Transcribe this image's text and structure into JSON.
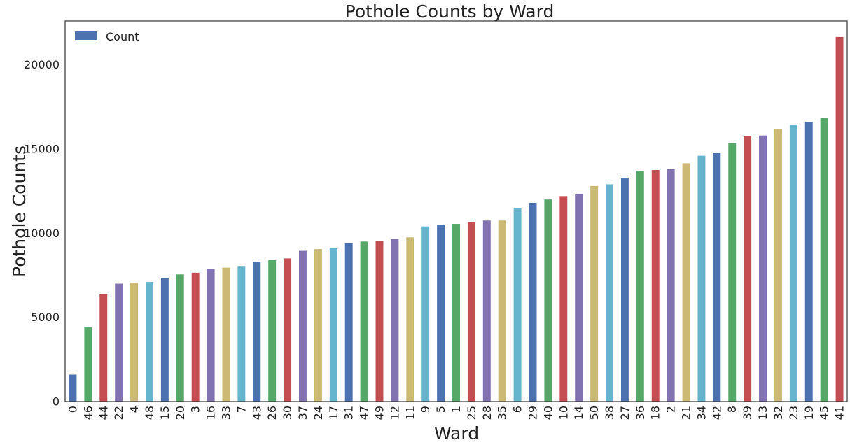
{
  "chart_data": {
    "type": "bar",
    "title": "Pothole Counts by Ward",
    "xlabel": "Ward",
    "ylabel": "Pothole Counts",
    "ylim": [
      0,
      22600
    ],
    "yticks": [
      0,
      5000,
      10000,
      15000,
      20000
    ],
    "grid": false,
    "legend": {
      "position": "top-left",
      "entries": [
        "Count"
      ]
    },
    "series": [
      {
        "name": "Count",
        "colors": [
          "#4C72B0",
          "#55A868",
          "#C44E52",
          "#8172B2",
          "#CCB974",
          "#64B5CD"
        ],
        "categories": [
          "0",
          "46",
          "44",
          "22",
          "4",
          "48",
          "15",
          "20",
          "3",
          "16",
          "33",
          "7",
          "43",
          "26",
          "30",
          "37",
          "24",
          "17",
          "31",
          "47",
          "49",
          "12",
          "11",
          "9",
          "5",
          "1",
          "25",
          "28",
          "35",
          "6",
          "29",
          "40",
          "10",
          "14",
          "50",
          "38",
          "27",
          "36",
          "18",
          "2",
          "21",
          "34",
          "42",
          "8",
          "39",
          "13",
          "32",
          "23",
          "19",
          "45",
          "41"
        ],
        "values": [
          1600,
          4400,
          6400,
          7000,
          7050,
          7100,
          7350,
          7550,
          7650,
          7850,
          7950,
          8050,
          8300,
          8400,
          8500,
          8950,
          9050,
          9100,
          9400,
          9500,
          9550,
          9650,
          9750,
          10400,
          10500,
          10550,
          10650,
          10750,
          10750,
          11500,
          11800,
          12000,
          12200,
          12300,
          12800,
          12900,
          13250,
          13700,
          13750,
          13800,
          14150,
          14600,
          14750,
          15350,
          15750,
          15800,
          16200,
          16450,
          16600,
          16850,
          21650
        ]
      }
    ]
  }
}
